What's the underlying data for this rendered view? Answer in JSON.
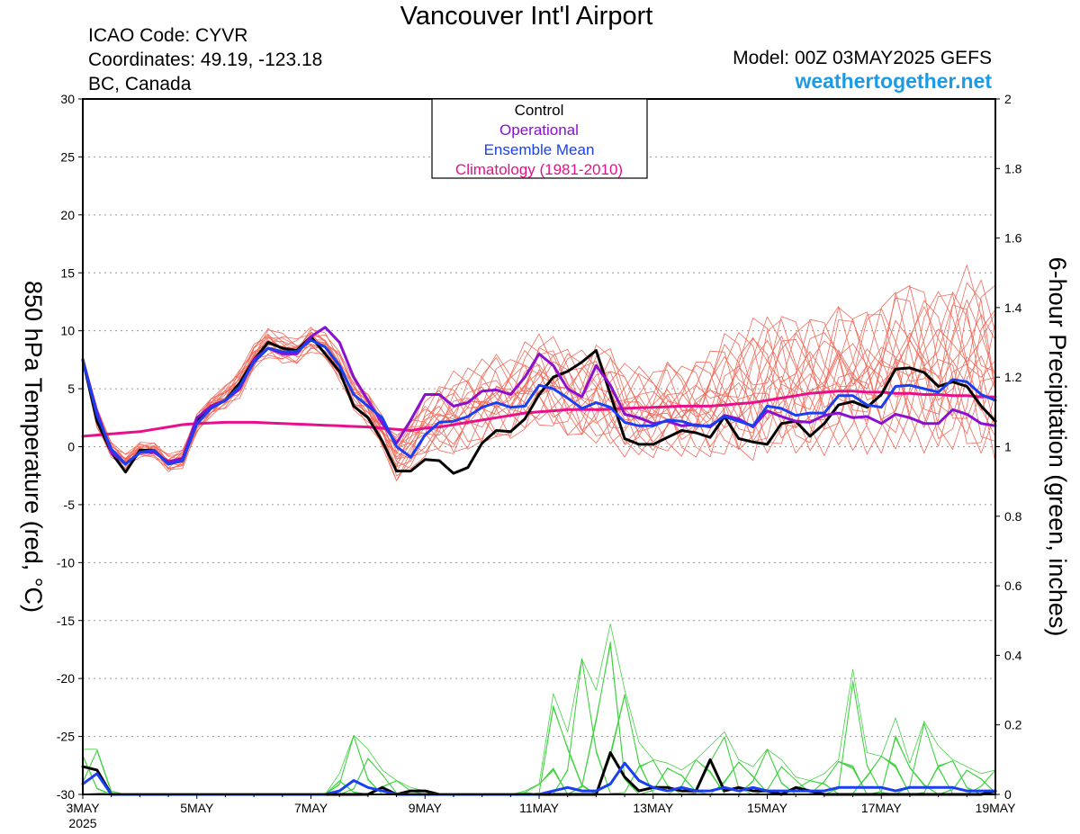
{
  "header": {
    "title": "Vancouver Int'l Airport",
    "icao": "ICAO Code: CYVR",
    "coordinates": "Coordinates: 49.19, -123.18",
    "region": "BC, Canada",
    "model": "Model: 00Z 03MAY2025 GEFS",
    "site": "weathertogether.net"
  },
  "colors": {
    "control": "#000000",
    "operational": "#8a0fd0",
    "ensemble_mean": "#1a3ff0",
    "climatology": "#e8108a",
    "temp_members": "#f26a5a",
    "precip_members": "#44d244",
    "site": "#1a9be6"
  },
  "chart_data": {
    "type": "line",
    "title": "Vancouver Int'l Airport",
    "ylabel": "850 hPa Temperature (red, °C)",
    "y2label": "6-hour Precipitation (green, inches)",
    "ylim": [
      -30,
      30
    ],
    "y2lim": [
      0,
      2
    ],
    "yticks": [
      "30",
      "25",
      "20",
      "15",
      "10",
      "5",
      "0",
      "-5",
      "-10",
      "-15",
      "-20",
      "-25",
      "-30"
    ],
    "y2ticks": [
      "2",
      "1.8",
      "1.6",
      "1.4",
      "1.2",
      "1",
      "0.8",
      "0.6",
      "0.4",
      "0.2",
      "0"
    ],
    "xlim": [
      0,
      16
    ],
    "xticks": [
      {
        "x": 0,
        "label": "3MAY",
        "sub": "2025"
      },
      {
        "x": 2,
        "label": "5MAY"
      },
      {
        "x": 4,
        "label": "7MAY"
      },
      {
        "x": 6,
        "label": "9MAY"
      },
      {
        "x": 8,
        "label": "11MAY"
      },
      {
        "x": 10,
        "label": "13MAY"
      },
      {
        "x": 12,
        "label": "15MAY"
      },
      {
        "x": 14,
        "label": "17MAY"
      },
      {
        "x": 16,
        "label": "19MAY"
      }
    ],
    "grid": true,
    "legend_position": "top-center",
    "legend": [
      {
        "name": "Control",
        "color": "#000000"
      },
      {
        "name": "Operational",
        "color": "#8a0fd0"
      },
      {
        "name": "Ensemble Mean",
        "color": "#1a3ff0"
      },
      {
        "name": "Climatology (1981-2010)",
        "color": "#e8108a"
      }
    ],
    "x": [
      0,
      0.25,
      0.5,
      0.75,
      1,
      1.25,
      1.5,
      1.75,
      2,
      2.25,
      2.5,
      2.75,
      3,
      3.25,
      3.5,
      3.75,
      4,
      4.25,
      4.5,
      4.75,
      5,
      5.25,
      5.5,
      5.75,
      6,
      6.25,
      6.5,
      6.75,
      7,
      7.25,
      7.5,
      7.75,
      8,
      8.25,
      8.5,
      8.75,
      9,
      9.25,
      9.5,
      9.75,
      10,
      10.25,
      10.5,
      10.75,
      11,
      11.25,
      11.5,
      11.75,
      12,
      12.25,
      12.5,
      12.75,
      13,
      13.25,
      13.5,
      13.75,
      14,
      14.25,
      14.5,
      14.75,
      15,
      15.25,
      15.5,
      15.75,
      16
    ],
    "temperature_series": [
      {
        "name": "Control",
        "values": [
          7.5,
          2.2,
          -0.5,
          -2.2,
          -0.3,
          -0.3,
          -1.5,
          -1.2,
          2.2,
          3.5,
          4.0,
          5.5,
          7.5,
          9.0,
          8.5,
          8.3,
          9.5,
          8.0,
          6.5,
          3.5,
          2.5,
          0.5,
          -2.1,
          -2.1,
          -1.1,
          -1.2,
          -2.3,
          -1.8,
          0.3,
          1.4,
          1.3,
          2.4,
          4.5,
          6.0,
          6.5,
          7.3,
          8.3,
          4.5,
          0.7,
          0.2,
          0.2,
          0.8,
          1.4,
          1.2,
          0.8,
          2.6,
          0.7,
          0.4,
          0.2,
          2.0,
          2.2,
          0.9,
          2.0,
          3.6,
          3.9,
          3.4,
          4.5,
          6.7,
          6.8,
          6.4,
          5.2,
          5.6,
          5.2,
          3.5,
          2.2,
          2.6,
          2.7
        ]
      },
      {
        "name": "Operational",
        "values": [
          7.5,
          3.0,
          -0.5,
          -1.5,
          -0.5,
          -0.5,
          -1.3,
          -1.0,
          2.5,
          3.5,
          4.0,
          5.0,
          7.5,
          8.5,
          8.0,
          8.0,
          9.5,
          10.3,
          9.0,
          6.0,
          4.0,
          2.0,
          0.3,
          2.3,
          4.5,
          4.5,
          3.5,
          3.8,
          4.8,
          4.9,
          4.5,
          6.0,
          8.0,
          7.0,
          5.0,
          4.3,
          7.0,
          5.3,
          2.8,
          2.5,
          2.0,
          2.2,
          1.8,
          1.9,
          1.7,
          2.7,
          2.4,
          1.7,
          3.1,
          2.6,
          2.2,
          2.1,
          2.7,
          2.9,
          2.5,
          2.6,
          2.0,
          2.8,
          2.5,
          2.0,
          2.0,
          3.2,
          2.8,
          2.0,
          1.8,
          2.0,
          2.2
        ]
      },
      {
        "name": "Ensemble Mean",
        "values": [
          7.5,
          2.7,
          -0.2,
          -1.5,
          -0.5,
          -0.3,
          -1.5,
          -1.2,
          2.0,
          3.3,
          4.0,
          5.2,
          7.3,
          8.5,
          8.2,
          8.2,
          9.2,
          8.6,
          7.0,
          4.5,
          3.5,
          2.5,
          0.0,
          -0.9,
          1.0,
          2.1,
          2.2,
          2.6,
          3.4,
          3.8,
          3.4,
          3.5,
          5.3,
          5.0,
          4.2,
          3.3,
          3.8,
          3.4,
          2.1,
          1.8,
          1.8,
          2.3,
          2.2,
          1.8,
          1.8,
          2.6,
          2.2,
          1.8,
          3.5,
          3.3,
          2.7,
          2.9,
          2.9,
          4.4,
          4.4,
          3.6,
          3.4,
          5.2,
          5.3,
          5.0,
          4.7,
          5.8,
          5.6,
          4.5,
          4.0,
          4.4,
          4.6
        ]
      },
      {
        "name": "Climatology (1981-2010)",
        "values": [
          0.9,
          1.0,
          1.1,
          1.2,
          1.3,
          1.5,
          1.7,
          1.9,
          2.0,
          2.05,
          2.1,
          2.1,
          2.1,
          2.05,
          2.0,
          1.95,
          1.9,
          1.85,
          1.8,
          1.75,
          1.7,
          1.6,
          1.5,
          1.4,
          1.6,
          1.7,
          1.9,
          2.1,
          2.3,
          2.5,
          2.7,
          2.9,
          3.0,
          3.1,
          3.2,
          3.2,
          3.2,
          3.25,
          3.3,
          3.35,
          3.4,
          3.45,
          3.5,
          3.5,
          3.5,
          3.6,
          3.7,
          3.8,
          4.0,
          4.2,
          4.4,
          4.6,
          4.7,
          4.8,
          4.8,
          4.7,
          4.7,
          4.6,
          4.6,
          4.5,
          4.5,
          4.4,
          4.4,
          4.3,
          4.3,
          4.2,
          4.2
        ]
      }
    ],
    "temperature_members_spread": {
      "name": "Ensemble members",
      "low": [
        7.0,
        1.5,
        -1.0,
        -2.0,
        -1.0,
        -1.0,
        -2.3,
        -2.0,
        1.0,
        2.5,
        3.0,
        4.0,
        6.5,
        7.5,
        7.0,
        7.0,
        8.0,
        7.5,
        5.5,
        3.0,
        1.5,
        -0.5,
        -3.5,
        -2.5,
        -1.5,
        -1.0,
        -1.5,
        -1.0,
        -0.5,
        0.0,
        0.0,
        0.5,
        1.0,
        0.5,
        0.0,
        -0.5,
        -0.5,
        -1.0,
        -1.5,
        -1.5,
        -1.5,
        -1.0,
        -1.5,
        -1.5,
        -2.0,
        -1.5,
        -2.0,
        -2.5,
        -2.0,
        -1.5,
        -1.5,
        -2.0,
        -1.5,
        -1.0,
        -1.0,
        -1.5,
        -1.5,
        -1.0,
        -1.0,
        -1.5,
        -2.0,
        -1.5,
        -2.0,
        -2.5,
        -3.0,
        -3.0,
        -2.5
      ],
      "high": [
        8.0,
        3.5,
        0.5,
        -0.5,
        0.5,
        0.5,
        -0.5,
        0.0,
        3.0,
        4.5,
        5.5,
        7.0,
        9.0,
        10.5,
        10.0,
        9.5,
        10.5,
        10.0,
        8.5,
        6.0,
        5.0,
        3.0,
        1.5,
        3.0,
        5.0,
        6.0,
        7.0,
        7.5,
        8.0,
        8.5,
        8.0,
        9.5,
        10.5,
        10.0,
        9.5,
        9.0,
        10.0,
        9.5,
        8.0,
        7.5,
        7.0,
        8.0,
        7.5,
        8.0,
        9.0,
        10.5,
        11.0,
        12.0,
        13.0,
        13.0,
        12.0,
        12.5,
        12.0,
        13.5,
        12.5,
        13.0,
        13.5,
        15.0,
        15.5,
        15.5,
        15.0,
        16.0,
        17.0,
        16.5,
        15.0,
        14.5,
        14.5
      ]
    },
    "precipitation_series": [
      {
        "name": "Control",
        "values": [
          0.08,
          0.07,
          0,
          0,
          0,
          0,
          0,
          0,
          0,
          0,
          0,
          0,
          0,
          0,
          0,
          0,
          0,
          0,
          0,
          0,
          0,
          0.02,
          0,
          0.01,
          0.01,
          0,
          0,
          0,
          0,
          0,
          0,
          0,
          0,
          0,
          0,
          0,
          0,
          0.12,
          0.05,
          0.01,
          0.02,
          0.02,
          0.01,
          0.01,
          0.1,
          0.01,
          0.02,
          0.01,
          0.01,
          0,
          0.02,
          0.01,
          0,
          0,
          0,
          0,
          0,
          0,
          0,
          0,
          0,
          0,
          0,
          0,
          0.01,
          0.01,
          0
        ]
      },
      {
        "name": "Ensemble Mean",
        "values": [
          0.03,
          0.06,
          0,
          0,
          0,
          0,
          0,
          0,
          0,
          0,
          0,
          0,
          0,
          0,
          0,
          0,
          0,
          0,
          0.01,
          0.04,
          0.02,
          0.01,
          0,
          0,
          0,
          0,
          0,
          0,
          0,
          0,
          0,
          0,
          0,
          0.01,
          0.02,
          0.01,
          0.01,
          0.03,
          0.09,
          0.04,
          0.02,
          0.01,
          0.02,
          0.01,
          0.01,
          0.02,
          0.01,
          0.02,
          0.01,
          0.01,
          0.01,
          0.01,
          0.01,
          0.02,
          0.02,
          0.02,
          0.02,
          0.01,
          0.02,
          0.02,
          0.02,
          0.02,
          0.01,
          0.01,
          0.01,
          0.01,
          0.01
        ]
      }
    ],
    "precipitation_members_max": [
      0.13,
      0.13,
      0.01,
      0,
      0,
      0,
      0,
      0,
      0,
      0,
      0,
      0,
      0,
      0,
      0,
      0,
      0,
      0,
      0.06,
      0.17,
      0.13,
      0.07,
      0.04,
      0.02,
      0.01,
      0,
      0,
      0,
      0,
      0,
      0,
      0.01,
      0.03,
      0.29,
      0.18,
      0.39,
      0.3,
      0.49,
      0.3,
      0.15,
      0.1,
      0.09,
      0.07,
      0.1,
      0.14,
      0.18,
      0.1,
      0.08,
      0.13,
      0.1,
      0.05,
      0.04,
      0.06,
      0.1,
      0.36,
      0.12,
      0.11,
      0.22,
      0.09,
      0.21,
      0.14,
      0.1,
      0.08,
      0.06,
      0.07,
      0.07,
      0.07
    ]
  }
}
